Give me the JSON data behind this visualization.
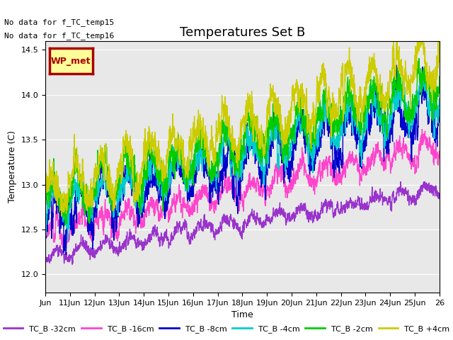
{
  "title": "Temperatures Set B",
  "xlabel": "Time",
  "ylabel": "Temperature (C)",
  "ylim": [
    11.8,
    14.6
  ],
  "xlim": [
    0,
    16
  ],
  "x_tick_positions": [
    0,
    1,
    2,
    3,
    4,
    5,
    6,
    7,
    8,
    9,
    10,
    11,
    12,
    13,
    14,
    15,
    16
  ],
  "x_tick_labels": [
    "Jun",
    "11Jun",
    "12Jun",
    "13Jun",
    "14Jun",
    "15Jun",
    "16Jun",
    "17Jun",
    "18Jun",
    "19Jun",
    "20Jun",
    "21Jun",
    "22Jun",
    "23Jun",
    "24Jun",
    "25Jun",
    "26"
  ],
  "annotations": [
    "No data for f_TC_temp15",
    "No data for f_TC_temp16"
  ],
  "legend_label": "WP_met",
  "legend_bg": "#ffff99",
  "legend_border": "#aa0000",
  "bg_color": "#e8e8e8",
  "series": [
    {
      "label": "TC_B -32cm",
      "color": "#9933cc",
      "lw": 1.0
    },
    {
      "label": "TC_B -16cm",
      "color": "#ff44cc",
      "lw": 1.0
    },
    {
      "label": "TC_B -8cm",
      "color": "#0000cc",
      "lw": 1.0
    },
    {
      "label": "TC_B -4cm",
      "color": "#00cccc",
      "lw": 1.0
    },
    {
      "label": "TC_B -2cm",
      "color": "#00cc00",
      "lw": 1.0
    },
    {
      "label": "TC_B +4cm",
      "color": "#cccc00",
      "lw": 1.0
    }
  ]
}
